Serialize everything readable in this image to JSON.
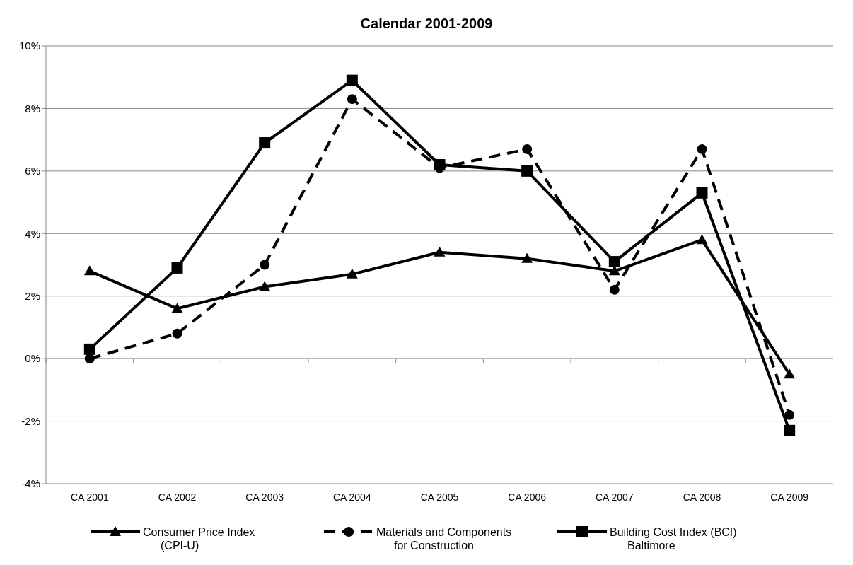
{
  "chart_data": {
    "type": "line",
    "title": "Calendar 2001-2009",
    "categories": [
      "CA 2001",
      "CA 2002",
      "CA 2003",
      "CA 2004",
      "CA 2005",
      "CA 2006",
      "CA 2007",
      "CA 2008",
      "CA 2009"
    ],
    "series": [
      {
        "name": "Consumer Price Index\n(CPI-U)",
        "color": "#000000",
        "marker": "triangle",
        "line_style": "solid",
        "values": [
          2.8,
          1.6,
          2.3,
          2.7,
          3.4,
          3.2,
          2.8,
          3.8,
          -0.5
        ]
      },
      {
        "name": "Materials and Components\nfor Construction",
        "color": "#000000",
        "marker": "circle",
        "line_style": "dashed",
        "values": [
          0.0,
          0.8,
          3.0,
          8.3,
          6.1,
          6.7,
          2.2,
          6.7,
          -1.8
        ]
      },
      {
        "name": "Building Cost Index (BCI)\nBaltimore",
        "color": "#000000",
        "marker": "square",
        "line_style": "solid",
        "values": [
          0.3,
          2.9,
          6.9,
          8.9,
          6.2,
          6.0,
          3.1,
          5.3,
          -2.3
        ]
      }
    ],
    "ylim": [
      -4,
      10
    ],
    "yticks": [
      {
        "value": -4,
        "label": "-4%"
      },
      {
        "value": -2,
        "label": "-2%"
      },
      {
        "value": 0,
        "label": "0%"
      },
      {
        "value": 2,
        "label": "2%"
      },
      {
        "value": 4,
        "label": "4%"
      },
      {
        "value": 6,
        "label": "6%"
      },
      {
        "value": 8,
        "label": "8%"
      },
      {
        "value": 10,
        "label": "10%"
      }
    ],
    "grid": "y",
    "legend": "bottom"
  }
}
